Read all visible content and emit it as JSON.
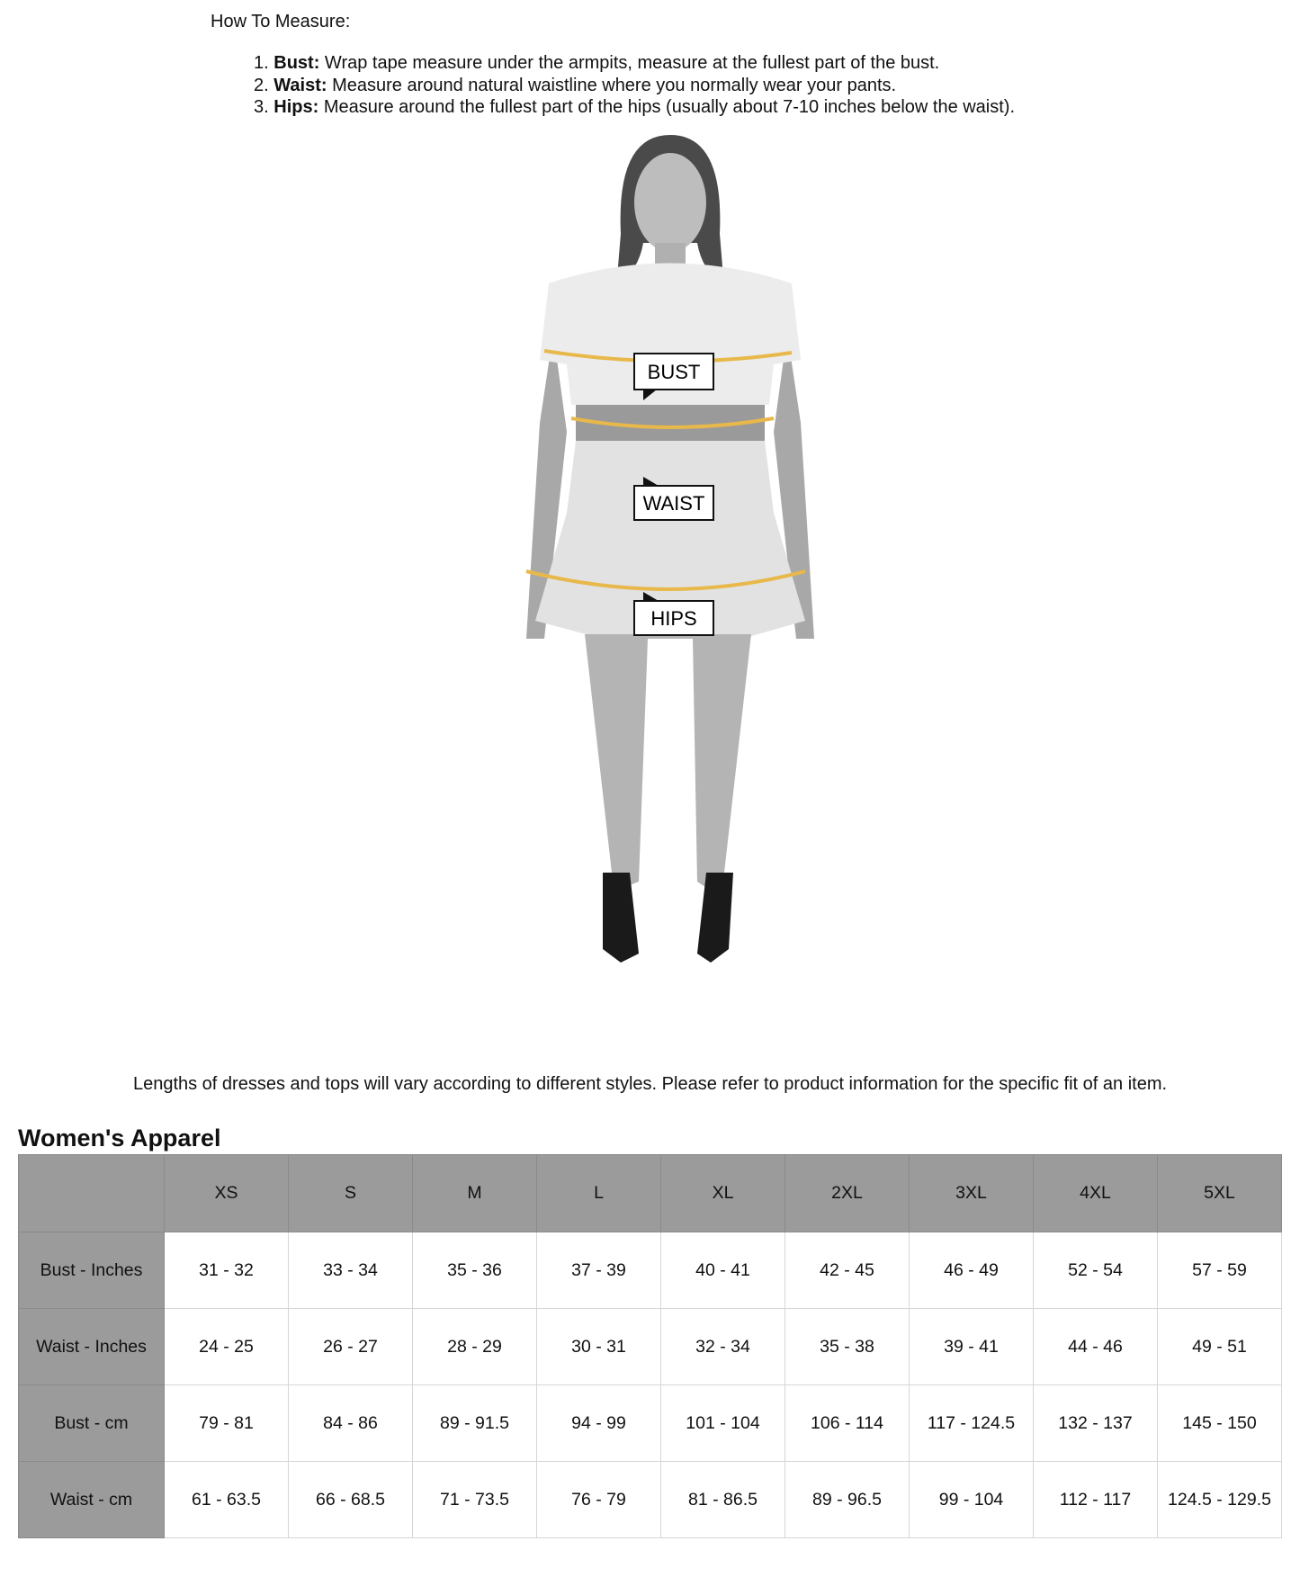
{
  "instructions": {
    "heading": "How To Measure:",
    "steps": [
      {
        "num": "1.",
        "label": "Bust:",
        "text": "Wrap tape measure under the armpits, measure at the fullest part of the bust."
      },
      {
        "num": "2.",
        "label": "Waist:",
        "text": "Measure around natural waistline where you normally wear your pants."
      },
      {
        "num": "3.",
        "label": "Hips:",
        "text": "Measure around the fullest part of the hips (usually about 7-10 inches below the waist)."
      }
    ]
  },
  "figure": {
    "labels": {
      "bust": "BUST",
      "waist": "WAIST",
      "hips": "HIPS"
    },
    "tape_color": "#e8b84a"
  },
  "caption": "Lengths of dresses and tops will vary according to different styles. Please refer to product information for the specific fit of an item.",
  "size_chart": {
    "title": "Women's Apparel",
    "sizes": [
      "XS",
      "S",
      "M",
      "L",
      "XL",
      "2XL",
      "3XL",
      "4XL",
      "5XL"
    ],
    "rows": [
      {
        "label": "Bust - Inches",
        "values": [
          "31 - 32",
          "33 - 34",
          "35 - 36",
          "37 - 39",
          "40 - 41",
          "42 - 45",
          "46 - 49",
          "52 - 54",
          "57 - 59"
        ]
      },
      {
        "label": "Waist - Inches",
        "values": [
          "24 - 25",
          "26 - 27",
          "28 - 29",
          "30 - 31",
          "32 - 34",
          "35 - 38",
          "39 - 41",
          "44 - 46",
          "49 - 51"
        ]
      },
      {
        "label": "Bust - cm",
        "values": [
          "79 - 81",
          "84 - 86",
          "89 - 91.5",
          "94 - 99",
          "101 - 104",
          "106 - 114",
          "117 - 124.5",
          "132 - 137",
          "145 - 150"
        ]
      },
      {
        "label": "Waist - cm",
        "values": [
          "61 - 63.5",
          "66 - 68.5",
          "71 - 73.5",
          "76 - 79",
          "81 - 86.5",
          "89 - 96.5",
          "99 - 104",
          "112 - 117",
          "124.5 - 129.5"
        ]
      }
    ]
  }
}
